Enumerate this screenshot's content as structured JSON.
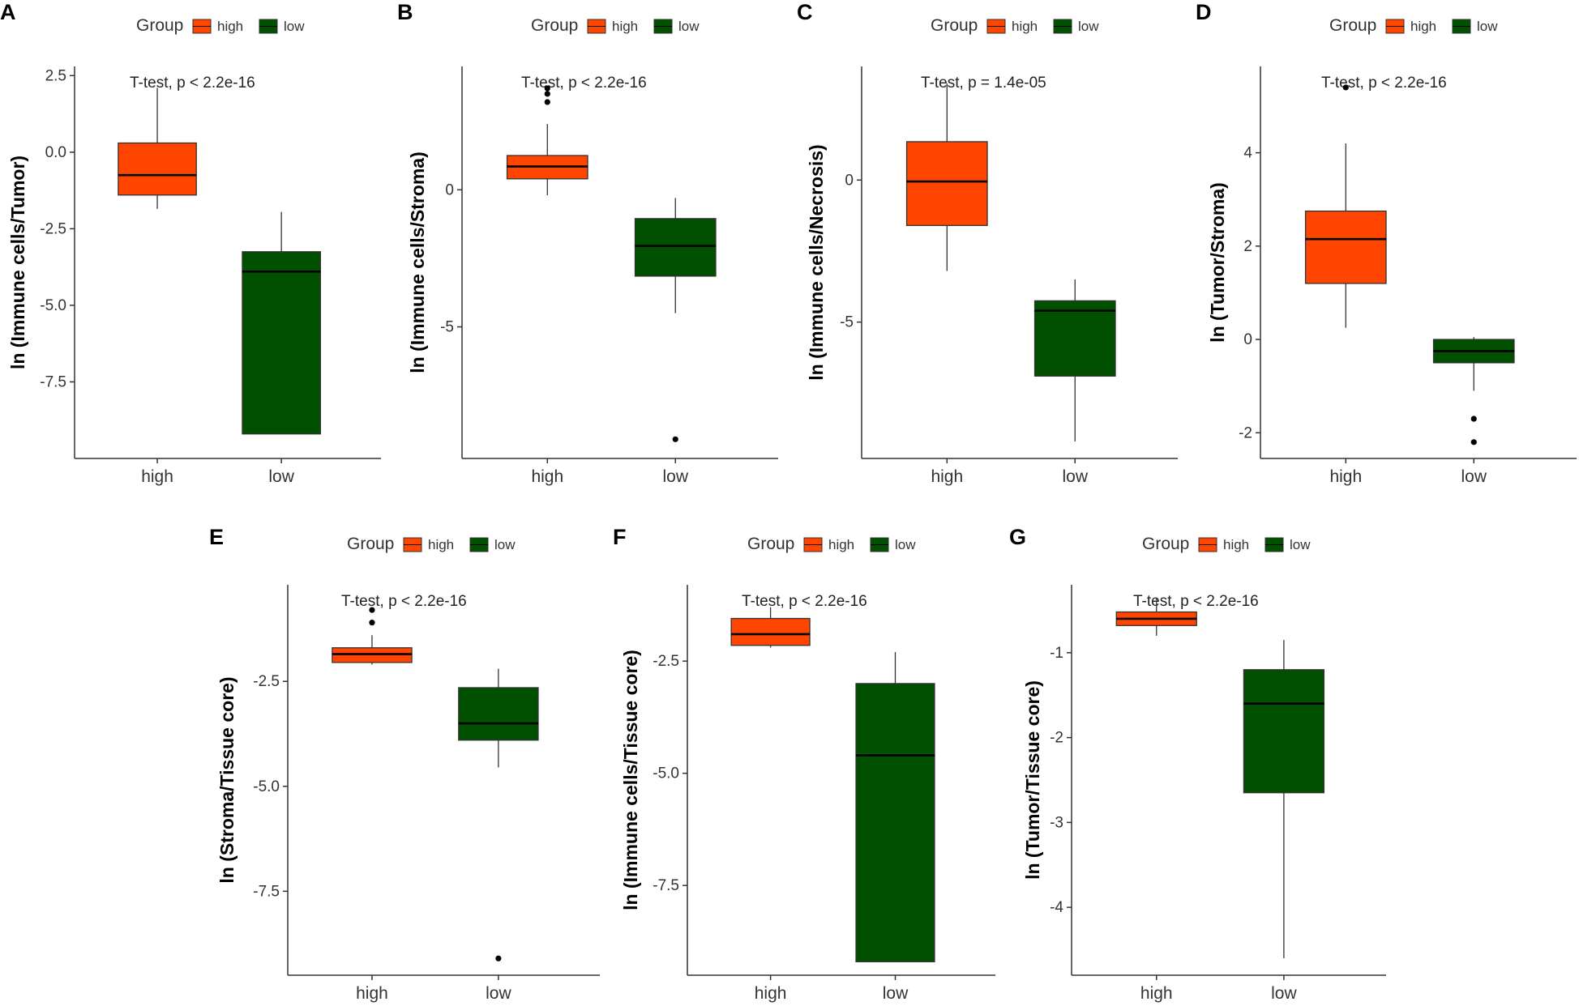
{
  "colors": {
    "high": "#FF4500",
    "low": "#005000",
    "axis": "#333333",
    "median": "#000000"
  },
  "chart_data": [
    {
      "type": "boxplot",
      "panel": "A",
      "ylabel": "ln (Immune cells/Tumor)",
      "ylim": [
        -10.0,
        2.8
      ],
      "yticks": [
        "2.5",
        "0.0",
        "-2.5",
        "-5.0",
        "-7.5"
      ],
      "categories": [
        "high",
        "low"
      ],
      "legend_title": "Group",
      "legend_entries": [
        "high",
        "low"
      ],
      "annotation": "T-test, p < 2.2e-16",
      "boxes": [
        {
          "name": "high",
          "lower_whisker": -1.85,
          "q1": -1.4,
          "median": -0.75,
          "q3": 0.3,
          "upper_whisker": 2.1,
          "outliers": []
        },
        {
          "name": "low",
          "lower_whisker": -9.2,
          "q1": -9.2,
          "median": -3.9,
          "q3": -3.25,
          "upper_whisker": -1.95,
          "outliers": []
        }
      ]
    },
    {
      "type": "boxplot",
      "panel": "B",
      "ylabel": "ln (Immune cells/Stroma)",
      "ylim": [
        -9.8,
        4.5
      ],
      "yticks": [
        "0",
        "-5"
      ],
      "categories": [
        "high",
        "low"
      ],
      "legend_title": "Group",
      "legend_entries": [
        "high",
        "low"
      ],
      "annotation": "T-test, p < 2.2e-16",
      "boxes": [
        {
          "name": "high",
          "lower_whisker": -0.2,
          "q1": 0.4,
          "median": 0.85,
          "q3": 1.25,
          "upper_whisker": 2.4,
          "outliers": [
            3.2,
            3.5,
            3.7
          ]
        },
        {
          "name": "low",
          "lower_whisker": -4.5,
          "q1": -3.15,
          "median": -2.05,
          "q3": -1.05,
          "upper_whisker": -0.3,
          "outliers": [
            -9.1
          ]
        }
      ]
    },
    {
      "type": "boxplot",
      "panel": "C",
      "ylabel": "ln (Immune cells/Necrosis)",
      "ylim": [
        -9.8,
        4.0
      ],
      "yticks": [
        "0",
        "-5"
      ],
      "categories": [
        "high",
        "low"
      ],
      "legend_title": "Group",
      "legend_entries": [
        "high",
        "low"
      ],
      "annotation": "T-test, p = 1.4e-05",
      "boxes": [
        {
          "name": "high",
          "lower_whisker": -3.2,
          "q1": -1.6,
          "median": -0.05,
          "q3": 1.35,
          "upper_whisker": 3.4,
          "outliers": []
        },
        {
          "name": "low",
          "lower_whisker": -9.2,
          "q1": -6.9,
          "median": -4.6,
          "q3": -4.25,
          "upper_whisker": -3.5,
          "outliers": []
        }
      ]
    },
    {
      "type": "boxplot",
      "panel": "D",
      "ylabel": "ln (Tumor/Stroma)",
      "ylim": [
        -2.55,
        5.85
      ],
      "yticks": [
        "4",
        "2",
        "0",
        "-2"
      ],
      "categories": [
        "high",
        "low"
      ],
      "legend_title": "Group",
      "legend_entries": [
        "high",
        "low"
      ],
      "annotation": "T-test, p < 2.2e-16",
      "boxes": [
        {
          "name": "high",
          "lower_whisker": 0.25,
          "q1": 1.2,
          "median": 2.15,
          "q3": 2.75,
          "upper_whisker": 4.2,
          "outliers": [
            5.4
          ]
        },
        {
          "name": "low",
          "lower_whisker": -1.1,
          "q1": -0.5,
          "median": -0.25,
          "q3": 0.0,
          "upper_whisker": 0.05,
          "outliers": [
            -1.7,
            -2.2
          ]
        }
      ]
    },
    {
      "type": "boxplot",
      "panel": "E",
      "ylabel": "ln (Stroma/Tissue core)",
      "ylim": [
        -9.5,
        -0.2
      ],
      "yticks": [
        "-2.5",
        "-5.0",
        "-7.5"
      ],
      "categories": [
        "high",
        "low"
      ],
      "legend_title": "Group",
      "legend_entries": [
        "high",
        "low"
      ],
      "annotation": "T-test, p < 2.2e-16",
      "boxes": [
        {
          "name": "high",
          "lower_whisker": -2.1,
          "q1": -2.05,
          "median": -1.85,
          "q3": -1.7,
          "upper_whisker": -1.4,
          "outliers": [
            -0.8,
            -1.1
          ]
        },
        {
          "name": "low",
          "lower_whisker": -4.55,
          "q1": -3.9,
          "median": -3.5,
          "q3": -2.65,
          "upper_whisker": -2.2,
          "outliers": [
            -9.1
          ]
        }
      ]
    },
    {
      "type": "boxplot",
      "panel": "F",
      "ylabel": "ln (Immune cells/Tissue core)",
      "ylim": [
        -9.5,
        -0.8
      ],
      "yticks": [
        "-2.5",
        "-5.0",
        "-7.5"
      ],
      "categories": [
        "high",
        "low"
      ],
      "legend_title": "Group",
      "legend_entries": [
        "high",
        "low"
      ],
      "annotation": "T-test, p < 2.2e-16",
      "boxes": [
        {
          "name": "high",
          "lower_whisker": -2.2,
          "q1": -2.15,
          "median": -1.9,
          "q3": -1.55,
          "upper_whisker": -1.3,
          "outliers": []
        },
        {
          "name": "low",
          "lower_whisker": -9.2,
          "q1": -9.2,
          "median": -4.6,
          "q3": -3.0,
          "upper_whisker": -2.3,
          "outliers": []
        }
      ]
    },
    {
      "type": "boxplot",
      "panel": "G",
      "ylabel": "ln (Tumor/Tissue core)",
      "ylim": [
        -4.8,
        -0.2
      ],
      "yticks": [
        "-1",
        "-2",
        "-3",
        "-4"
      ],
      "categories": [
        "high",
        "low"
      ],
      "legend_title": "Group",
      "legend_entries": [
        "high",
        "low"
      ],
      "annotation": "T-test, p < 2.2e-16",
      "boxes": [
        {
          "name": "high",
          "lower_whisker": -0.8,
          "q1": -0.68,
          "median": -0.6,
          "q3": -0.52,
          "upper_whisker": -0.35,
          "outliers": []
        },
        {
          "name": "low",
          "lower_whisker": -4.6,
          "q1": -2.65,
          "median": -1.6,
          "q3": -1.2,
          "upper_whisker": -0.85,
          "outliers": []
        }
      ]
    }
  ]
}
